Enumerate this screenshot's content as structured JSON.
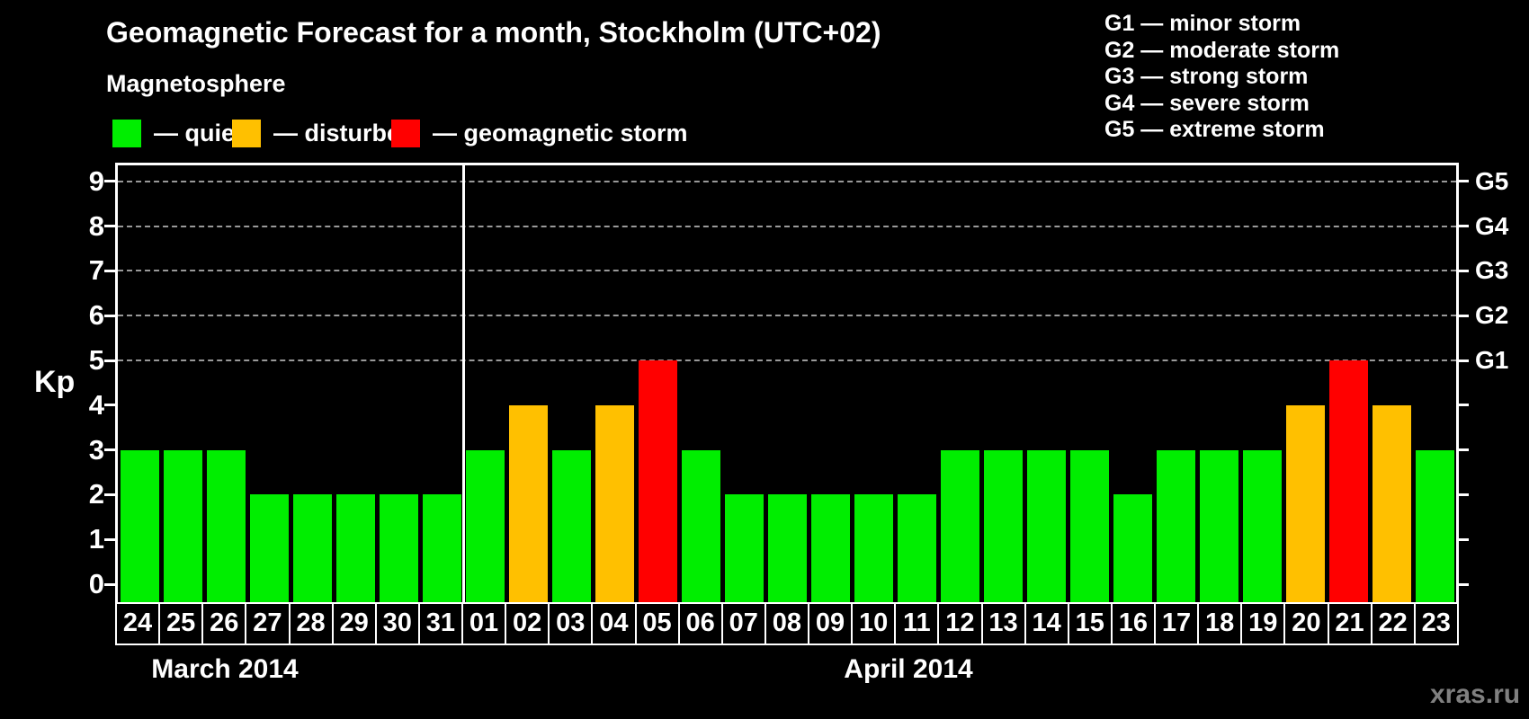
{
  "title": "Geomagnetic Forecast for a month, Stockholm (UTC+02)",
  "legend": {
    "heading": "Magnetosphere",
    "items": [
      {
        "key": "quiet",
        "label": "— quiet",
        "color": "#00EE00"
      },
      {
        "key": "disturbed",
        "label": "— disturbed",
        "color": "#FFC000"
      },
      {
        "key": "storm",
        "label": "— geomagnetic storm",
        "color": "#FF0000"
      }
    ]
  },
  "g_scale_legend": [
    "G1 — minor storm",
    "G2 — moderate storm",
    "G3 — strong storm",
    "G4 — severe storm",
    "G5 — extreme storm"
  ],
  "watermark": "xras.ru",
  "chart_data": {
    "type": "bar",
    "title": "Geomagnetic Forecast for a month, Stockholm (UTC+02)",
    "ylabel": "Kp",
    "ylim": [
      -0.4,
      9.4
    ],
    "yticks": [
      0,
      1,
      2,
      3,
      4,
      5,
      6,
      7,
      8,
      9
    ],
    "grid": "horizontal dashed lines at storm levels only",
    "gridlines_at_kp": [
      5,
      6,
      7,
      8,
      9
    ],
    "right_axis_labels": [
      {
        "kp": 5,
        "label": "G1"
      },
      {
        "kp": 6,
        "label": "G2"
      },
      {
        "kp": 7,
        "label": "G3"
      },
      {
        "kp": 8,
        "label": "G4"
      },
      {
        "kp": 9,
        "label": "G5"
      }
    ],
    "status_colors": {
      "quiet": "#00EE00",
      "disturbed": "#FFC000",
      "storm": "#FF0000"
    },
    "legend_position": "top-left",
    "groups": [
      {
        "label": "March 2014",
        "bars": [
          {
            "day": "24",
            "kp": 3,
            "status": "quiet"
          },
          {
            "day": "25",
            "kp": 3,
            "status": "quiet"
          },
          {
            "day": "26",
            "kp": 3,
            "status": "quiet"
          },
          {
            "day": "27",
            "kp": 2,
            "status": "quiet"
          },
          {
            "day": "28",
            "kp": 2,
            "status": "quiet"
          },
          {
            "day": "29",
            "kp": 2,
            "status": "quiet"
          },
          {
            "day": "30",
            "kp": 2,
            "status": "quiet"
          },
          {
            "day": "31",
            "kp": 2,
            "status": "quiet"
          }
        ]
      },
      {
        "label": "April 2014",
        "bars": [
          {
            "day": "01",
            "kp": 3,
            "status": "quiet"
          },
          {
            "day": "02",
            "kp": 4,
            "status": "disturbed"
          },
          {
            "day": "03",
            "kp": 3,
            "status": "quiet"
          },
          {
            "day": "04",
            "kp": 4,
            "status": "disturbed"
          },
          {
            "day": "05",
            "kp": 5,
            "status": "storm"
          },
          {
            "day": "06",
            "kp": 3,
            "status": "quiet"
          },
          {
            "day": "07",
            "kp": 2,
            "status": "quiet"
          },
          {
            "day": "08",
            "kp": 2,
            "status": "quiet"
          },
          {
            "day": "09",
            "kp": 2,
            "status": "quiet"
          },
          {
            "day": "10",
            "kp": 2,
            "status": "quiet"
          },
          {
            "day": "11",
            "kp": 2,
            "status": "quiet"
          },
          {
            "day": "12",
            "kp": 3,
            "status": "quiet"
          },
          {
            "day": "13",
            "kp": 3,
            "status": "quiet"
          },
          {
            "day": "14",
            "kp": 3,
            "status": "quiet"
          },
          {
            "day": "15",
            "kp": 3,
            "status": "quiet"
          },
          {
            "day": "16",
            "kp": 2,
            "status": "quiet"
          },
          {
            "day": "17",
            "kp": 3,
            "status": "quiet"
          },
          {
            "day": "18",
            "kp": 3,
            "status": "quiet"
          },
          {
            "day": "19",
            "kp": 3,
            "status": "quiet"
          },
          {
            "day": "20",
            "kp": 4,
            "status": "disturbed"
          },
          {
            "day": "21",
            "kp": 5,
            "status": "storm"
          },
          {
            "day": "22",
            "kp": 4,
            "status": "disturbed"
          },
          {
            "day": "23",
            "kp": 3,
            "status": "quiet"
          }
        ]
      }
    ]
  }
}
